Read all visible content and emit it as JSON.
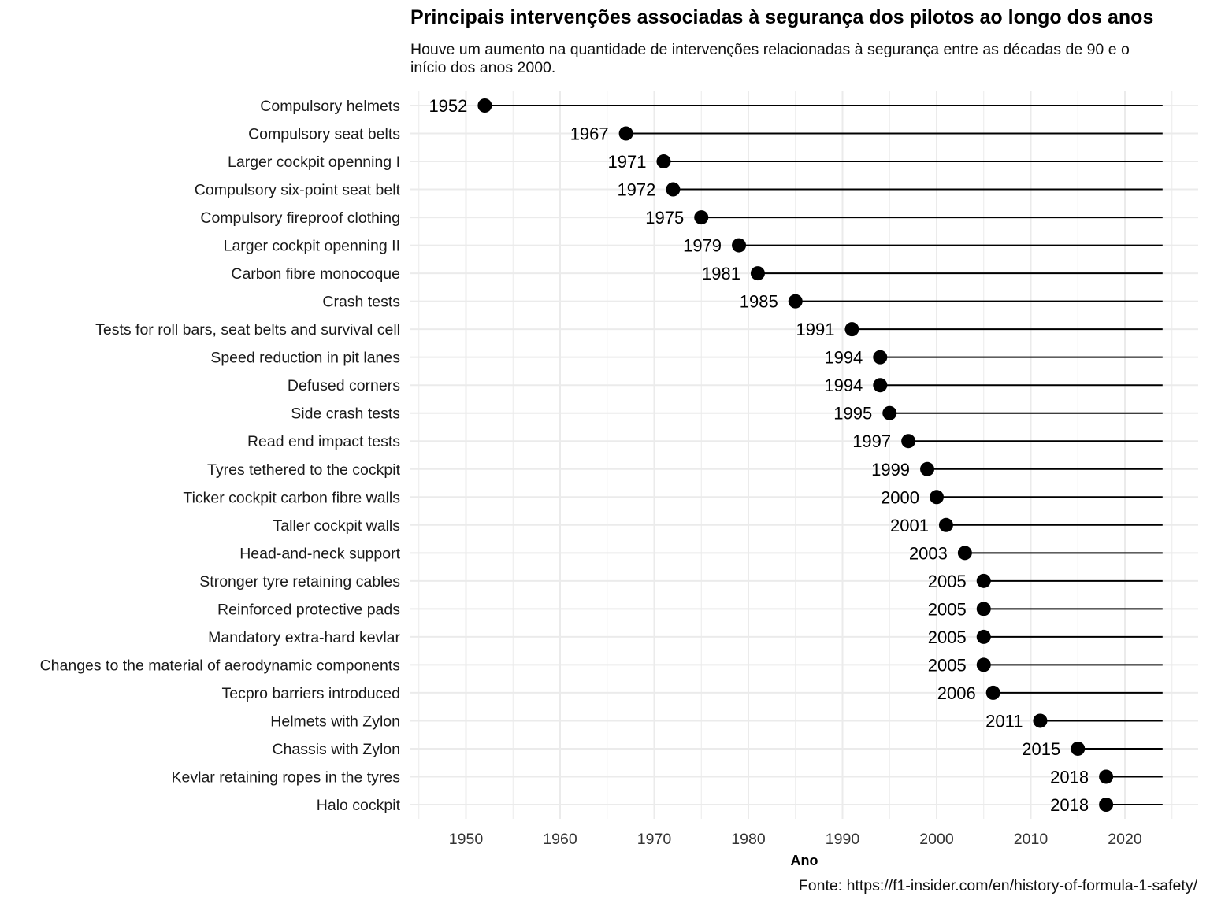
{
  "chart_data": {
    "type": "lollipop",
    "title": "Principais intervenções associadas à segurança dos pilotos ao longo dos anos",
    "subtitle": "Houve um aumento na quantidade de intervenções relacionadas à segurança entre as décadas de 90 e o início dos anos 2000.",
    "caption": "Fonte: https://f1-insider.com/en/history-of-formula-1-safety/",
    "xlabel": "Ano",
    "ylabel": "",
    "xlim": [
      1944.5,
      2025.5
    ],
    "x_ticks": [
      1950,
      1960,
      1970,
      1980,
      1990,
      2000,
      2010,
      2020
    ],
    "segment_end": 2024,
    "grid": true,
    "point_color": "#000000",
    "categories": [
      "Compulsory helmets",
      "Compulsory seat belts",
      "Larger cockpit openning I",
      "Compulsory six-point seat belt",
      "Compulsory fireproof clothing",
      "Larger cockpit openning II",
      "Carbon fibre monocoque",
      "Crash tests",
      "Tests for roll bars, seat belts and survival cell",
      "Speed reduction in pit lanes",
      "Defused corners",
      "Side crash tests",
      "Read end impact tests",
      "Tyres tethered to the cockpit",
      "Ticker cockpit carbon fibre walls",
      "Taller cockpit walls",
      "Head-and-neck support",
      "Stronger tyre retaining cables",
      "Reinforced protective pads",
      "Mandatory extra-hard kevlar",
      "Changes to the material of aerodynamic components",
      "Tecpro barriers introduced",
      "Helmets with Zylon",
      "Chassis with Zylon",
      "Kevlar retaining ropes in the tyres",
      "Halo cockpit"
    ],
    "values": [
      1952,
      1967,
      1971,
      1972,
      1975,
      1979,
      1981,
      1985,
      1991,
      1994,
      1994,
      1995,
      1997,
      1999,
      2000,
      2001,
      2003,
      2005,
      2005,
      2005,
      2005,
      2006,
      2011,
      2015,
      2018,
      2018
    ]
  }
}
